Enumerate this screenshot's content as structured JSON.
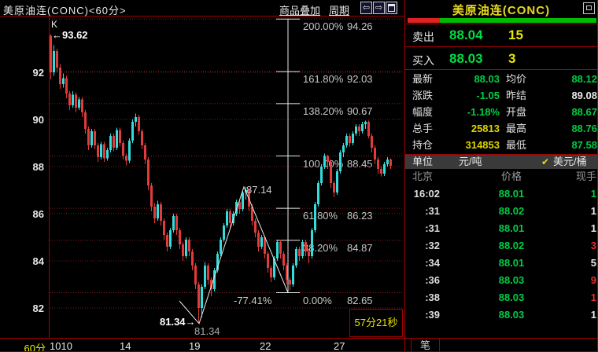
{
  "window": {
    "chart_title": "美原油连(CONC)<60分>",
    "panel_title": "美原油连(CONC)",
    "toolbar": {
      "overlay_label": "商品叠加",
      "period_label": "周期"
    },
    "icons": {
      "back_icon": "⇦",
      "forward_icon": "⇨"
    }
  },
  "chart_data": {
    "type": "candlestick",
    "period": "60分",
    "indicator_label": "K",
    "high_annotation": "←93.62",
    "low_annotation": "81.34→",
    "countdown": "57分21秒",
    "y_ticks": [
      92,
      90,
      88,
      86,
      84,
      82
    ],
    "x_axis_period": "60分",
    "x_ticks": [
      "1010",
      "14",
      "19",
      "22",
      "27"
    ],
    "fib_levels": [
      {
        "pct": "200.00%",
        "price": 94.26
      },
      {
        "pct": "161.80%",
        "price": 92.03
      },
      {
        "pct": "138.20%",
        "price": 90.67
      },
      {
        "pct": "100.00%",
        "price": 88.45
      },
      {
        "pct": "61.80%",
        "price": 86.23
      },
      {
        "pct": "38.20%",
        "price": 84.87
      },
      {
        "pct": "0.00%",
        "price": 82.65
      }
    ],
    "drawing": {
      "anchors": [
        [
          41,
          82.3
        ],
        [
          47.25,
          81.34
        ],
        [
          61.5,
          87.14
        ],
        [
          75.5,
          82.65
        ]
      ],
      "low_label": "81.34",
      "high_label": "87.14",
      "retrace_label": "-77.41%"
    },
    "candles": [
      [
        93.55,
        93.62,
        91.7,
        92.0
      ],
      [
        92.0,
        93.15,
        91.85,
        92.9
      ],
      [
        92.9,
        93.0,
        92.0,
        92.2
      ],
      [
        92.2,
        92.35,
        91.3,
        91.5
      ],
      [
        91.5,
        91.95,
        91.35,
        91.75
      ],
      [
        91.75,
        91.85,
        90.9,
        91.1
      ],
      [
        91.1,
        91.2,
        90.4,
        90.6
      ],
      [
        90.6,
        91.2,
        90.5,
        91.05
      ],
      [
        91.05,
        91.15,
        90.3,
        90.5
      ],
      [
        90.5,
        90.95,
        90.4,
        90.85
      ],
      [
        90.85,
        90.95,
        90.1,
        90.3
      ],
      [
        90.3,
        90.4,
        89.4,
        89.6
      ],
      [
        89.6,
        89.7,
        88.7,
        88.9
      ],
      [
        88.9,
        89.6,
        88.8,
        89.5
      ],
      [
        89.5,
        89.6,
        88.75,
        88.9
      ],
      [
        88.9,
        89.0,
        88.2,
        88.4
      ],
      [
        88.4,
        89.05,
        88.3,
        88.95
      ],
      [
        88.95,
        89.05,
        88.2,
        88.35
      ],
      [
        88.35,
        88.8,
        88.25,
        88.7
      ],
      [
        88.7,
        89.4,
        88.6,
        89.3
      ],
      [
        89.3,
        89.4,
        88.65,
        88.8
      ],
      [
        88.8,
        89.65,
        88.7,
        89.55
      ],
      [
        89.55,
        89.65,
        88.85,
        89.0
      ],
      [
        89.0,
        89.1,
        88.3,
        88.45
      ],
      [
        88.45,
        88.55,
        88.05,
        88.25
      ],
      [
        88.25,
        89.2,
        88.15,
        89.1
      ],
      [
        89.1,
        90.0,
        89.0,
        89.9
      ],
      [
        89.9,
        90.25,
        89.7,
        90.1
      ],
      [
        90.1,
        90.2,
        89.35,
        89.5
      ],
      [
        89.5,
        89.6,
        88.75,
        88.9
      ],
      [
        88.9,
        89.0,
        88.1,
        88.3
      ],
      [
        88.3,
        88.4,
        87.0,
        87.2
      ],
      [
        87.2,
        87.3,
        86.1,
        86.3
      ],
      [
        86.3,
        86.45,
        85.6,
        85.8
      ],
      [
        85.8,
        86.55,
        85.7,
        86.4
      ],
      [
        86.4,
        86.5,
        85.5,
        85.7
      ],
      [
        85.7,
        85.8,
        84.9,
        85.1
      ],
      [
        85.1,
        85.2,
        84.4,
        84.6
      ],
      [
        84.6,
        85.4,
        84.5,
        85.3
      ],
      [
        85.3,
        86.0,
        85.2,
        85.9
      ],
      [
        85.9,
        86.0,
        85.1,
        85.3
      ],
      [
        85.3,
        85.4,
        84.5,
        84.7
      ],
      [
        84.7,
        84.8,
        84.0,
        84.2
      ],
      [
        84.2,
        85.0,
        84.1,
        84.9
      ],
      [
        84.9,
        85.0,
        84.2,
        84.4
      ],
      [
        84.4,
        84.5,
        83.6,
        83.8
      ],
      [
        83.8,
        83.9,
        82.8,
        83.0
      ],
      [
        83.0,
        83.1,
        81.34,
        82.0
      ],
      [
        82.0,
        83.0,
        81.6,
        82.9
      ],
      [
        82.9,
        83.95,
        82.8,
        83.8
      ],
      [
        83.8,
        83.9,
        83.0,
        83.2
      ],
      [
        83.2,
        83.3,
        82.5,
        82.8
      ],
      [
        82.8,
        83.7,
        82.7,
        83.6
      ],
      [
        83.6,
        84.4,
        83.5,
        84.3
      ],
      [
        84.3,
        85.0,
        84.2,
        84.9
      ],
      [
        84.9,
        85.6,
        84.8,
        85.5
      ],
      [
        85.5,
        86.2,
        85.4,
        86.1
      ],
      [
        86.1,
        86.2,
        85.4,
        85.6
      ],
      [
        85.6,
        86.1,
        85.5,
        86.0
      ],
      [
        86.0,
        86.6,
        85.9,
        86.5
      ],
      [
        86.5,
        86.6,
        86.0,
        86.2
      ],
      [
        86.2,
        87.0,
        86.1,
        86.9
      ],
      [
        86.9,
        87.14,
        86.6,
        87.0
      ],
      [
        87.0,
        87.05,
        86.1,
        86.3
      ],
      [
        86.3,
        86.4,
        85.5,
        85.7
      ],
      [
        85.7,
        85.8,
        85.0,
        85.2
      ],
      [
        85.2,
        85.3,
        84.4,
        84.6
      ],
      [
        84.6,
        85.1,
        84.5,
        85.0
      ],
      [
        85.0,
        85.05,
        84.1,
        84.3
      ],
      [
        84.3,
        84.4,
        83.5,
        83.7
      ],
      [
        83.7,
        83.8,
        83.1,
        83.3
      ],
      [
        83.3,
        84.2,
        83.2,
        84.1
      ],
      [
        84.1,
        84.9,
        84.0,
        84.8
      ],
      [
        84.8,
        84.9,
        84.1,
        84.3
      ],
      [
        84.3,
        84.4,
        83.6,
        83.8
      ],
      [
        83.8,
        83.9,
        83.0,
        83.2
      ],
      [
        83.2,
        83.3,
        82.75,
        83.0
      ],
      [
        83.0,
        83.9,
        82.9,
        83.8
      ],
      [
        83.8,
        84.6,
        83.7,
        84.5
      ],
      [
        84.5,
        84.6,
        84.0,
        84.2
      ],
      [
        84.2,
        84.9,
        84.1,
        84.8
      ],
      [
        84.8,
        84.9,
        84.2,
        84.4
      ],
      [
        84.4,
        84.5,
        83.9,
        84.2
      ],
      [
        84.2,
        85.4,
        84.1,
        85.3
      ],
      [
        85.3,
        86.5,
        85.2,
        86.4
      ],
      [
        86.4,
        87.4,
        86.3,
        87.3
      ],
      [
        87.3,
        88.1,
        87.2,
        88.0
      ],
      [
        88.0,
        88.55,
        87.9,
        88.45
      ],
      [
        88.45,
        88.5,
        87.9,
        88.2
      ],
      [
        88.2,
        88.3,
        87.1,
        87.3
      ],
      [
        87.3,
        87.4,
        86.7,
        86.9
      ],
      [
        86.9,
        87.9,
        86.8,
        87.8
      ],
      [
        87.8,
        88.7,
        87.7,
        88.6
      ],
      [
        88.6,
        89.0,
        88.4,
        88.9
      ],
      [
        88.9,
        89.4,
        88.8,
        89.3
      ],
      [
        89.3,
        89.4,
        88.85,
        89.0
      ],
      [
        89.0,
        89.5,
        88.9,
        89.4
      ],
      [
        89.4,
        89.8,
        89.3,
        89.7
      ],
      [
        89.7,
        89.8,
        89.3,
        89.5
      ],
      [
        89.5,
        89.9,
        89.4,
        89.8
      ],
      [
        89.8,
        89.95,
        89.6,
        89.9
      ],
      [
        89.9,
        89.95,
        89.2,
        89.3
      ],
      [
        89.3,
        89.4,
        88.6,
        88.8
      ],
      [
        88.8,
        88.9,
        88.1,
        88.3
      ],
      [
        88.3,
        88.4,
        87.7,
        87.9
      ],
      [
        87.9,
        88.0,
        87.58,
        87.7
      ],
      [
        87.7,
        88.2,
        87.6,
        88.1
      ],
      [
        88.1,
        88.4,
        88.0,
        88.3
      ],
      [
        88.3,
        88.35,
        87.9,
        88.03
      ]
    ]
  },
  "quote": {
    "ratio_bar": {
      "red_pct": 17,
      "green_pct": 83
    },
    "sell": {
      "label": "卖出",
      "price": "88.04",
      "volume": "15"
    },
    "buy": {
      "label": "买入",
      "price": "88.03",
      "volume": "3"
    },
    "stats": [
      {
        "l1": "最新",
        "v1": "88.03",
        "c1": "green",
        "l2": "均价",
        "v2": "88.12",
        "c2": "green"
      },
      {
        "l1": "涨跌",
        "v1": "-1.05",
        "c1": "green",
        "l2": "昨结",
        "v2": "89.08",
        "c2": "white"
      },
      {
        "l1": "幅度",
        "v1": "-1.18%",
        "c1": "green",
        "l2": "开盘",
        "v2": "88.67",
        "c2": "green"
      },
      {
        "l1": "总手",
        "v1": "25813",
        "c1": "yellow",
        "l2": "最高",
        "v2": "88.76",
        "c2": "green"
      },
      {
        "l1": "持仓",
        "v1": "314853",
        "c1": "yellow",
        "l2": "最低",
        "v2": "87.58",
        "c2": "green"
      }
    ],
    "unit": {
      "label": "单位",
      "option1": "元/吨",
      "check": "✔",
      "option2": "美元/桶"
    },
    "tick_header": {
      "time": "北京",
      "price": "价格",
      "volume": "现手"
    },
    "ticks": [
      {
        "time": "16:02",
        "price": "88.01",
        "vol": "1",
        "vc": "green"
      },
      {
        "time": ":31",
        "price": "88.02",
        "vol": "1",
        "vc": "white"
      },
      {
        "time": ":31",
        "price": "88.01",
        "vol": "1",
        "vc": "white"
      },
      {
        "time": ":32",
        "price": "88.02",
        "vol": "3",
        "vc": "red"
      },
      {
        "time": ":34",
        "price": "88.01",
        "vol": "5",
        "vc": "white"
      },
      {
        "time": ":36",
        "price": "88.03",
        "vol": "9",
        "vc": "red"
      },
      {
        "time": ":38",
        "price": "88.03",
        "vol": "1",
        "vc": "red"
      },
      {
        "time": ":39",
        "price": "88.03",
        "vol": "1",
        "vc": "white"
      }
    ],
    "tab_label": "笔"
  },
  "colors": {
    "candle_up": "#35dcdc",
    "candle_down": "#e23b3b",
    "grid_line": "#6e1e1e",
    "fib_line": "#8a2222",
    "border_red": "#a50000",
    "value_green": "#00cc44",
    "value_yellow": "#ddd400",
    "value_red": "#e03030",
    "title_yellow": "#e8d820"
  }
}
